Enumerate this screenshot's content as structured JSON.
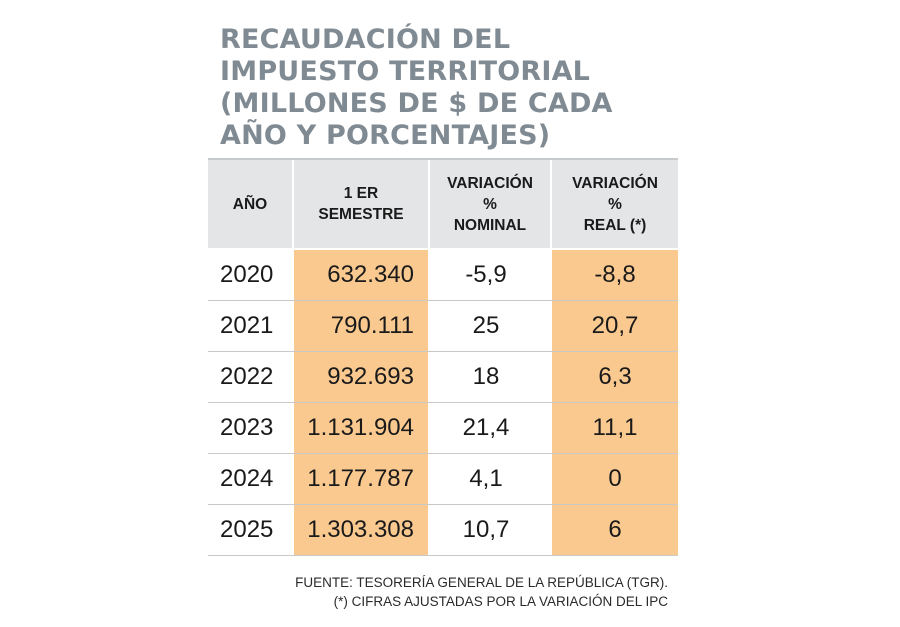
{
  "title_lines": [
    "RECAUDACIÓN DEL",
    "IMPUESTO TERRITORIAL",
    "(MILLONES DE $ DE CADA",
    "AÑO Y PORCENTAJES)"
  ],
  "chart_data": {
    "type": "table",
    "title": "RECAUDACIÓN DEL IMPUESTO TERRITORIAL (MILLONES DE $ DE CADA AÑO Y PORCENTAJES)",
    "columns": [
      [
        "AÑO"
      ],
      [
        "1 ER",
        "SEMESTRE"
      ],
      [
        "VARIACIÓN",
        "%",
        "NOMINAL"
      ],
      [
        "VARIACIÓN",
        "%",
        "REAL (*)"
      ]
    ],
    "rows": [
      {
        "year": "2020",
        "semester": "632.340",
        "nominal": "-5,9",
        "real": "-8,8"
      },
      {
        "year": "2021",
        "semester": "790.111",
        "nominal": "25",
        "real": "20,7"
      },
      {
        "year": "2022",
        "semester": "932.693",
        "nominal": "18",
        "real": "6,3"
      },
      {
        "year": "2023",
        "semester": "1.131.904",
        "nominal": "21,4",
        "real": "11,1"
      },
      {
        "year": "2024",
        "semester": "1.177.787",
        "nominal": "4,1",
        "real": "0"
      },
      {
        "year": "2025",
        "semester": "1.303.308",
        "nominal": "10,7",
        "real": "6"
      }
    ],
    "highlight_color": "#fac98f",
    "header_color": "#e3e5e7",
    "title_color": "#7f8a92"
  },
  "source_lines": [
    "FUENTE: TESORERÍA GENERAL DE LA REPÚBLICA (TGR).",
    "(*) CIFRAS AJUSTADAS POR LA VARIACIÓN DEL IPC"
  ]
}
